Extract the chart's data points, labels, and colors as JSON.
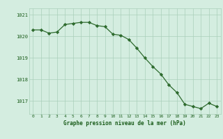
{
  "x": [
    0,
    1,
    2,
    3,
    4,
    5,
    6,
    7,
    8,
    9,
    10,
    11,
    12,
    13,
    14,
    15,
    16,
    17,
    18,
    19,
    20,
    21,
    22,
    23
  ],
  "y": [
    1020.3,
    1020.3,
    1020.15,
    1020.2,
    1020.55,
    1020.6,
    1020.65,
    1020.65,
    1020.5,
    1020.45,
    1020.1,
    1020.05,
    1019.85,
    1019.45,
    1019.0,
    1018.6,
    1018.25,
    1017.75,
    1017.4,
    1016.85,
    1016.75,
    1016.65,
    1016.9,
    1016.75
  ],
  "line_color": "#2d6a2d",
  "marker_color": "#2d6a2d",
  "bg_color": "#d4ede0",
  "grid_color": "#aacfba",
  "title": "Graphe pression niveau de la mer (hPa)",
  "title_color": "#1a5c1a",
  "tick_color": "#1a5c1a",
  "ylim": [
    1016.4,
    1021.3
  ],
  "yticks": [
    1017,
    1018,
    1019,
    1020,
    1021
  ],
  "xticks": [
    0,
    1,
    2,
    3,
    4,
    5,
    6,
    7,
    8,
    9,
    10,
    11,
    12,
    13,
    14,
    15,
    16,
    17,
    18,
    19,
    20,
    21,
    22,
    23
  ]
}
